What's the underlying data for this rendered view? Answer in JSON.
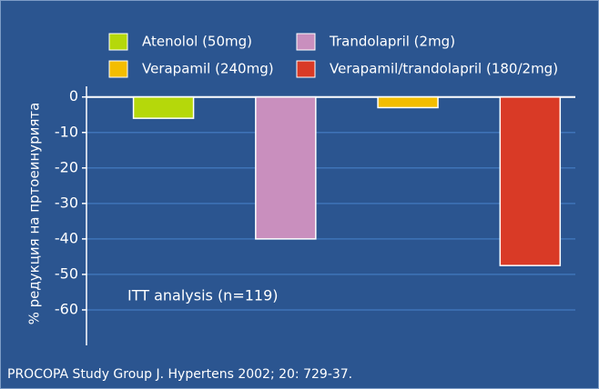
{
  "chart_data": {
    "type": "bar",
    "categories": [
      null
    ],
    "series": [
      {
        "name": "Atenolol (50mg)",
        "color": "#b5d80a",
        "values": [
          -6
        ]
      },
      {
        "name": "Trandolapril (2mg)",
        "color": "#c98fbe",
        "values": [
          -40
        ]
      },
      {
        "name": "Verapamil (240mg)",
        "color": "#f3bd00",
        "values": [
          -3
        ]
      },
      {
        "name": "Verapamil/trandolapril (180/2mg)",
        "color": "#d93a26",
        "values": [
          -47.5
        ]
      }
    ],
    "ylabel": "% редукция на пртоеинурията",
    "ylim": [
      -70,
      3
    ],
    "yticks": [
      0,
      -10,
      -20,
      -30,
      -40,
      -50,
      -60
    ],
    "grid": true,
    "annotations": [
      "ITT analysis (n=119)",
      "PROCOPA Study Group J. Hypertens 2002; 20: 729-37."
    ]
  }
}
